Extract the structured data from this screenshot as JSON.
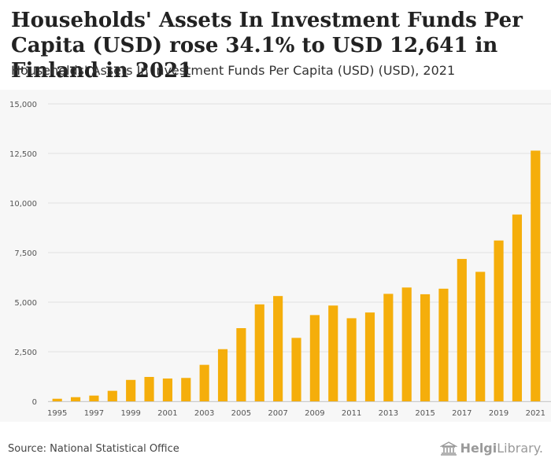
{
  "header": {
    "title": "Households' Assets In Investment Funds Per Capita (USD) rose 34.1% to USD 12,641 in Finland in 2021",
    "subtitle": "Households' Assets In Investment Funds Per Capita (USD) (USD), 2021"
  },
  "footer": {
    "source": "Source: National Statistical Office",
    "brand_part1": "Helgi",
    "brand_part2": "Library."
  },
  "colors": {
    "bar": "#f5ae0b",
    "grid": "#e0e0e0",
    "axis_text": "#555555"
  },
  "chart_data": {
    "type": "bar",
    "title": "Households' Assets In Investment Funds Per Capita (USD) (USD), 2021",
    "xlabel": "",
    "ylabel": "",
    "ylim": [
      0,
      15000
    ],
    "yticks": [
      0,
      2500,
      5000,
      7500,
      10000,
      12500,
      15000
    ],
    "ytick_labels": [
      "0",
      "2,500",
      "5,000",
      "7,500",
      "10,000",
      "12,500",
      "15,000"
    ],
    "categories": [
      "1995",
      "1996",
      "1997",
      "1998",
      "1999",
      "2000",
      "2001",
      "2002",
      "2003",
      "2004",
      "2005",
      "2006",
      "2007",
      "2008",
      "2009",
      "2010",
      "2011",
      "2012",
      "2013",
      "2014",
      "2015",
      "2016",
      "2017",
      "2018",
      "2019",
      "2020",
      "2021"
    ],
    "xtick_labels": [
      "1995",
      "1997",
      "1999",
      "2001",
      "2003",
      "2005",
      "2007",
      "2009",
      "2011",
      "2013",
      "2015",
      "2017",
      "2019",
      "2021"
    ],
    "values": [
      130,
      210,
      290,
      530,
      1080,
      1230,
      1150,
      1180,
      1840,
      2630,
      3690,
      4890,
      5310,
      3200,
      4350,
      4830,
      4190,
      4480,
      5420,
      5740,
      5400,
      5680,
      7180,
      6530,
      8110,
      9420,
      12641
    ]
  }
}
